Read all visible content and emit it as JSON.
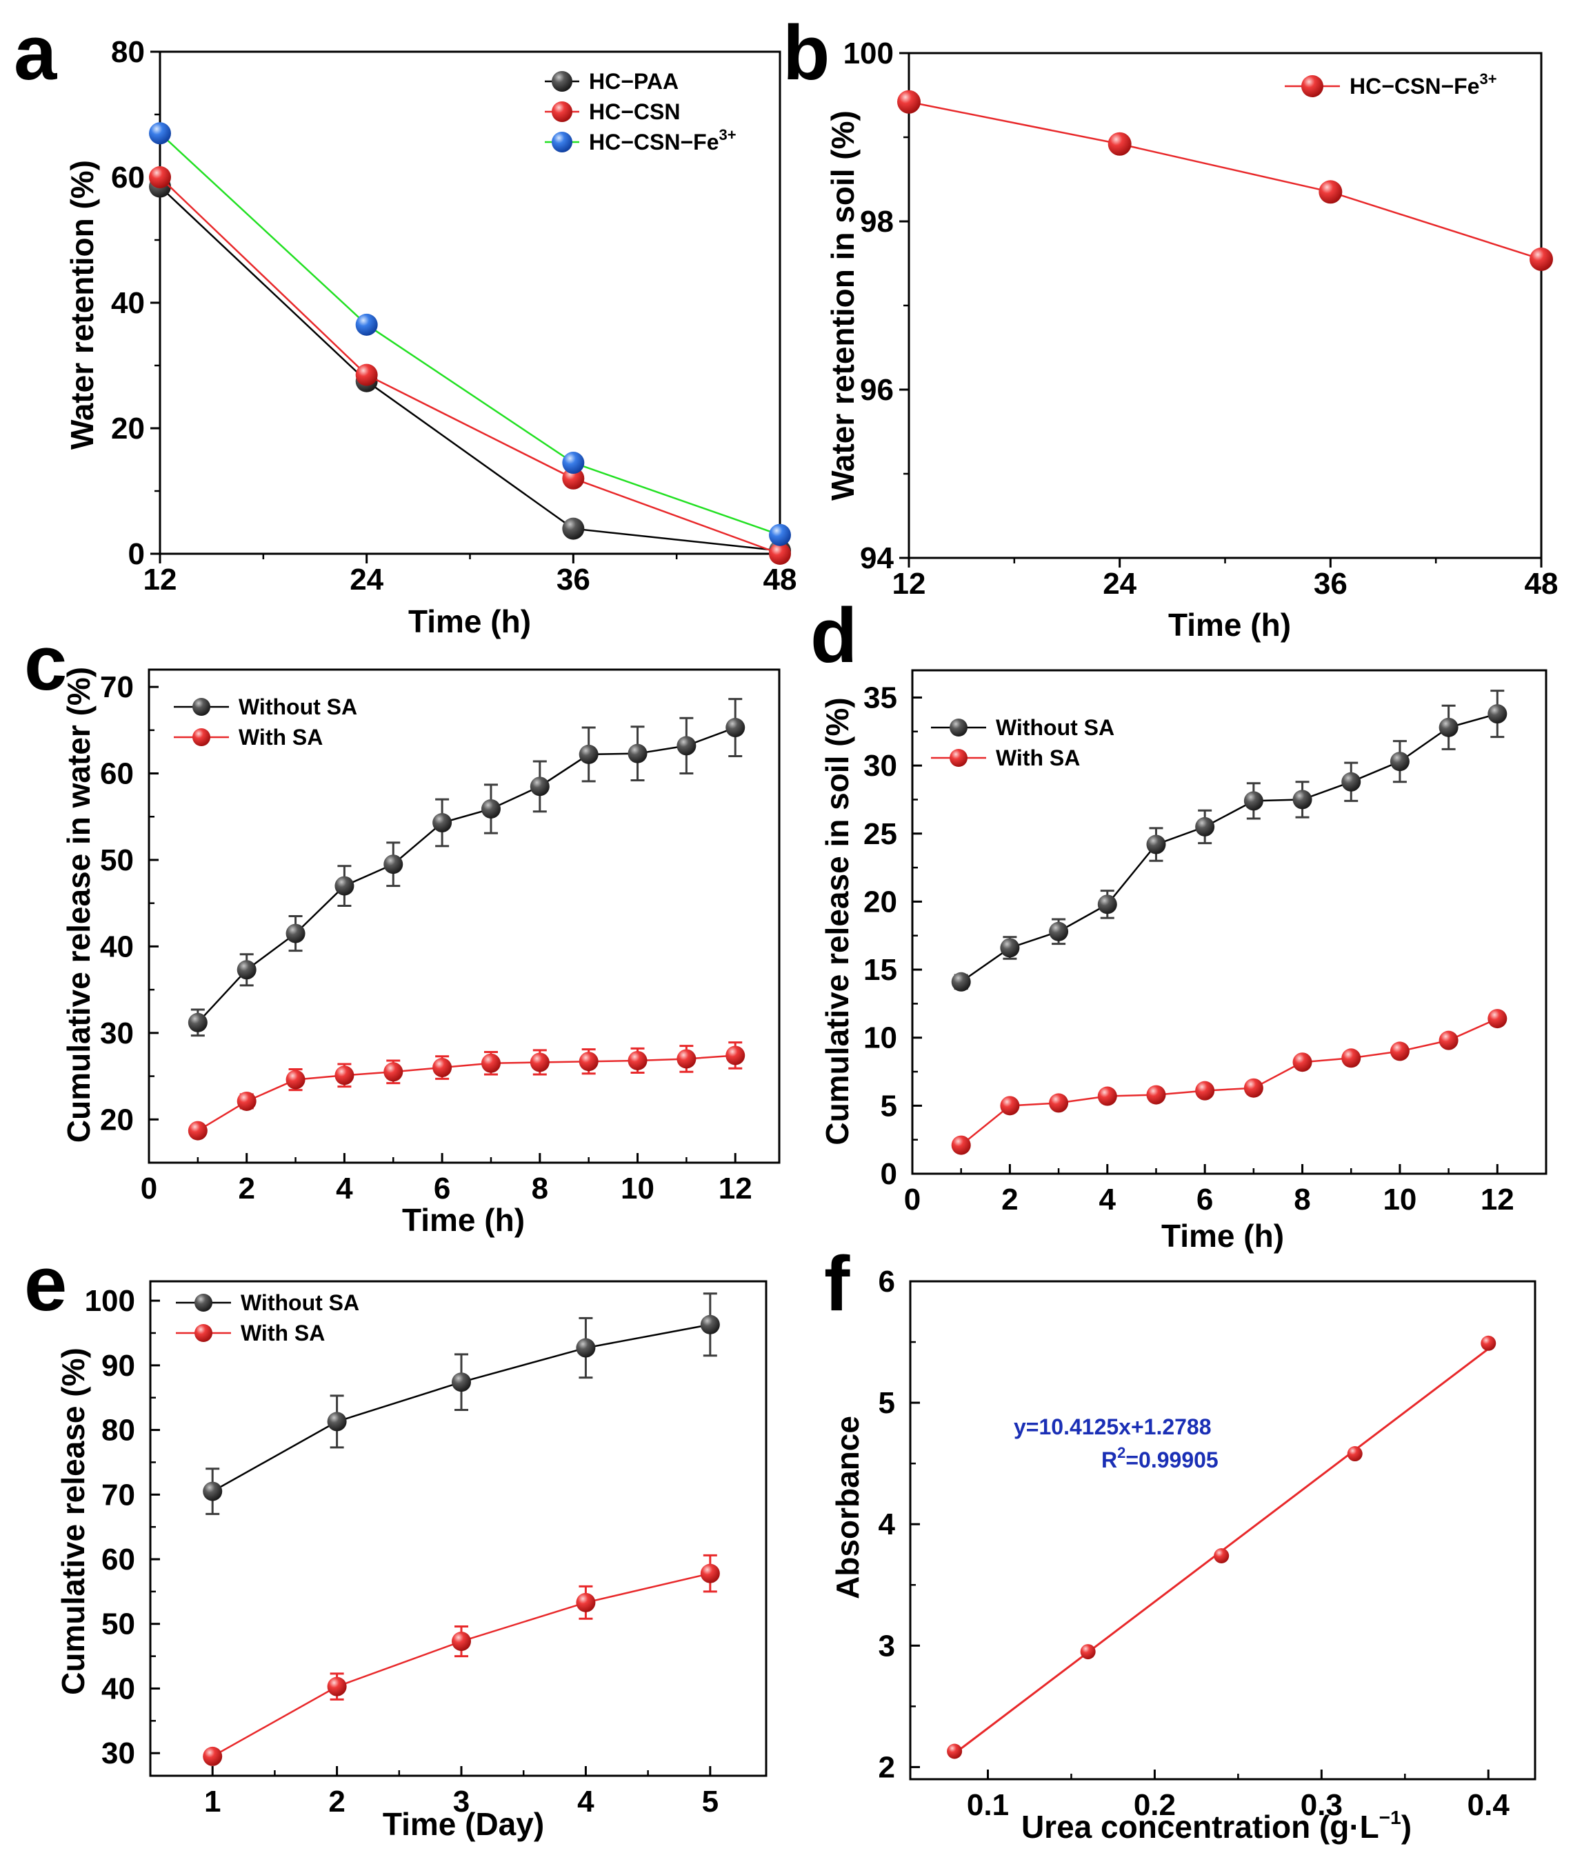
{
  "colors": {
    "black_series": "#3c3c3c",
    "red_series": "#e8282a",
    "blue_series": "#2f6fe0",
    "green_line": "#22e022",
    "equation": "#1a2fb5"
  },
  "chart_data": [
    {
      "panel": "a",
      "type": "line",
      "xlabel": "Time (h)",
      "ylabel": "Water retention (%)",
      "x": [
        12,
        24,
        36,
        48
      ],
      "xticks": [
        "12",
        "24",
        "36",
        "48"
      ],
      "yticks": [
        "0",
        "20",
        "40",
        "60",
        "80"
      ],
      "xlim": [
        12,
        48
      ],
      "ylim": [
        0,
        80
      ],
      "legend_position": "top-right",
      "series": [
        {
          "name": "HC−PAA",
          "values": [
            58.5,
            27.5,
            4,
            0.5
          ],
          "color": "#3c3c3c",
          "line_color": "#000000"
        },
        {
          "name": "HC−CSN",
          "values": [
            60,
            28.5,
            12,
            0
          ],
          "color": "#e8282a",
          "line_color": "#e8282a"
        },
        {
          "name": "HC−CSN−Fe",
          "sup": "3+",
          "values": [
            67,
            36.5,
            14.5,
            3
          ],
          "color": "#2f6fe0",
          "line_color": "#22e022"
        }
      ]
    },
    {
      "panel": "b",
      "type": "line",
      "xlabel": "Time (h)",
      "ylabel": "Water retention in soil (%)",
      "x": [
        12,
        24,
        36,
        48
      ],
      "xticks": [
        "12",
        "24",
        "36",
        "48"
      ],
      "yticks": [
        "94",
        "96",
        "98",
        "100"
      ],
      "xlim": [
        12,
        48
      ],
      "ylim": [
        94,
        100
      ],
      "legend_position": "top-right",
      "series": [
        {
          "name": "HC−CSN−Fe",
          "sup": "3+",
          "values": [
            99.42,
            98.92,
            98.35,
            97.55
          ],
          "color": "#e8282a",
          "line_color": "#e8282a"
        }
      ]
    },
    {
      "panel": "c",
      "type": "line",
      "xlabel": "Time (h)",
      "ylabel": "Cumulative release in water (%)",
      "x": [
        1,
        2,
        3,
        4,
        5,
        6,
        7,
        8,
        9,
        10,
        11,
        12
      ],
      "xticks": [
        "0",
        "2",
        "4",
        "6",
        "8",
        "10",
        "12"
      ],
      "yticks": [
        "20",
        "30",
        "40",
        "50",
        "60",
        "70"
      ],
      "xlim": [
        0,
        12.9
      ],
      "ylim": [
        15,
        72
      ],
      "legend_position": "top-left",
      "series": [
        {
          "name": "Without SA",
          "values": [
            31.2,
            37.3,
            41.5,
            47,
            49.5,
            54.3,
            55.9,
            58.5,
            62.2,
            62.3,
            63.2,
            65.3
          ],
          "errors": [
            1.5,
            1.8,
            2,
            2.3,
            2.5,
            2.7,
            2.8,
            2.9,
            3.1,
            3.1,
            3.2,
            3.3
          ],
          "color": "#3c3c3c",
          "line_color": "#000000"
        },
        {
          "name": "With SA",
          "values": [
            18.7,
            22.1,
            24.6,
            25.1,
            25.5,
            26,
            26.5,
            26.6,
            26.7,
            26.8,
            27,
            27.4
          ],
          "errors": [
            0.5,
            0.8,
            1.2,
            1.3,
            1.3,
            1.3,
            1.3,
            1.4,
            1.4,
            1.4,
            1.5,
            1.5
          ],
          "color": "#e8282a",
          "line_color": "#e8282a"
        }
      ]
    },
    {
      "panel": "d",
      "type": "line",
      "xlabel": "Time (h)",
      "ylabel": "Cumulative release in soil (%)",
      "x": [
        1,
        2,
        3,
        4,
        5,
        6,
        7,
        8,
        9,
        10,
        11,
        12
      ],
      "xticks": [
        "0",
        "2",
        "4",
        "6",
        "8",
        "10",
        "12"
      ],
      "yticks": [
        "0",
        "5",
        "10",
        "15",
        "20",
        "25",
        "30",
        "35"
      ],
      "xlim": [
        0,
        13
      ],
      "ylim": [
        0,
        37
      ],
      "legend_position": "top-left",
      "series": [
        {
          "name": "Without SA",
          "values": [
            14.1,
            16.6,
            17.8,
            19.8,
            24.2,
            25.5,
            27.4,
            27.5,
            28.8,
            30.3,
            32.8,
            33.8
          ],
          "errors": [
            0.5,
            0.8,
            0.9,
            1,
            1.2,
            1.2,
            1.3,
            1.3,
            1.4,
            1.5,
            1.6,
            1.7
          ],
          "color": "#3c3c3c",
          "line_color": "#000000"
        },
        {
          "name": "With SA",
          "values": [
            2.1,
            5,
            5.2,
            5.7,
            5.8,
            6.1,
            6.3,
            8.2,
            8.5,
            9,
            9.8,
            11.4
          ],
          "errors": [
            0.1,
            0.1,
            0.1,
            0.1,
            0.1,
            0.1,
            0.1,
            0.1,
            0.1,
            0.1,
            0.1,
            0.1
          ],
          "color": "#e8282a",
          "line_color": "#e8282a"
        }
      ]
    },
    {
      "panel": "e",
      "type": "line",
      "xlabel": "Time (Day)",
      "ylabel": "Cumulative release (%)",
      "x": [
        1,
        2,
        3,
        4,
        5
      ],
      "xticks": [
        "1",
        "2",
        "3",
        "4",
        "5"
      ],
      "yticks": [
        "30",
        "40",
        "50",
        "60",
        "70",
        "80",
        "90",
        "100"
      ],
      "xlim": [
        0.5,
        5.45
      ],
      "ylim": [
        26.5,
        103
      ],
      "legend_position": "top-left",
      "series": [
        {
          "name": "Without SA",
          "values": [
            70.5,
            81.3,
            87.4,
            92.7,
            96.3
          ],
          "errors": [
            3.5,
            4,
            4.3,
            4.6,
            4.8
          ],
          "color": "#3c3c3c",
          "line_color": "#000000"
        },
        {
          "name": "With SA",
          "values": [
            29.5,
            40.3,
            47.3,
            53.3,
            57.8
          ],
          "errors": [
            0.8,
            2,
            2.3,
            2.5,
            2.8
          ],
          "color": "#e8282a",
          "line_color": "#e8282a"
        }
      ]
    },
    {
      "panel": "f",
      "type": "scatter",
      "xlabel": "Urea concentration (g·L",
      "xlabel_sup": "−1",
      "xlabel_tail": ")",
      "ylabel": "Absorbance",
      "x": [
        0.08,
        0.16,
        0.24,
        0.32,
        0.4
      ],
      "xticks": [
        "0.1",
        "0.2",
        "0.3",
        "0.4"
      ],
      "yticks": [
        "2",
        "3",
        "4",
        "5",
        "6"
      ],
      "xlim": [
        0.0535,
        0.428
      ],
      "ylim": [
        1.9,
        6
      ],
      "fit": {
        "slope": 10.4125,
        "intercept": 1.2788,
        "x_range": [
          0.08,
          0.4
        ]
      },
      "equation": "y=10.4125x+1.2788",
      "r2_label": "R",
      "r2_sup": "2",
      "r2_value": "=0.99905",
      "series": [
        {
          "name": "Absorbance",
          "values": [
            2.13,
            2.95,
            3.74,
            4.58,
            5.49
          ],
          "color": "#e8282a",
          "line_color": "#e8282a"
        }
      ]
    }
  ]
}
